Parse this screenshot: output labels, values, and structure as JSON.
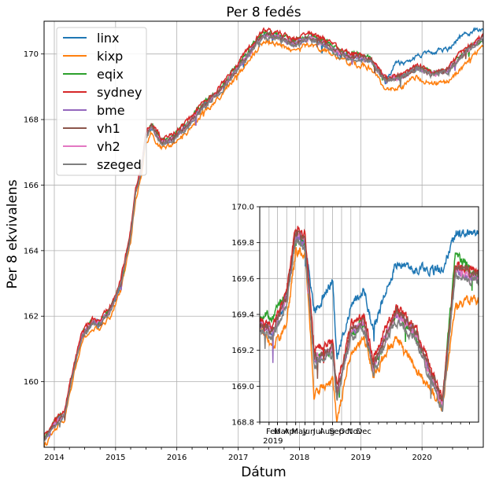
{
  "chart_data": [
    {
      "type": "line",
      "title": "Per 8 fedés",
      "xlabel": "Dátum",
      "ylabel": "Per 8 ekvivalens",
      "xlim": [
        "2013-11-01",
        "2020-12-31"
      ],
      "ylim": [
        158.0,
        171.0
      ],
      "grid": true,
      "legend_position": "top-left",
      "x_ticks": [
        "2014",
        "2015",
        "2016",
        "2017",
        "2018",
        "2019",
        "2020"
      ],
      "y_ticks": [
        160,
        162,
        164,
        166,
        168,
        170
      ],
      "colors": {
        "linx": "#1f77b4",
        "kixp": "#ff7f0e",
        "eqix": "#2ca02c",
        "sydney": "#d62728",
        "bme": "#9467bd",
        "vh1": "#8c564b",
        "vh2": "#e377c2",
        "szeged": "#7f7f7f"
      },
      "base": {
        "x": [
          "2013-11-01",
          "2014-01-01",
          "2014-03-01",
          "2014-05-01",
          "2014-06-15",
          "2014-08-15",
          "2014-10-01",
          "2014-12-01",
          "2015-02-01",
          "2015-04-01",
          "2015-05-01",
          "2015-06-01",
          "2015-07-01",
          "2015-08-01",
          "2015-10-01",
          "2015-12-01",
          "2016-03-01",
          "2016-06-01",
          "2016-09-01",
          "2016-12-01",
          "2017-03-01",
          "2017-06-01",
          "2017-09-01",
          "2017-12-01",
          "2018-03-01",
          "2018-06-01",
          "2018-09-01",
          "2018-12-01",
          "2019-03-01",
          "2019-06-01",
          "2019-09-01",
          "2019-12-01",
          "2020-03-01",
          "2020-06-01",
          "2020-09-01",
          "2020-12-31"
        ],
        "y": [
          158.2,
          158.7,
          159.0,
          160.5,
          161.4,
          161.8,
          161.8,
          162.2,
          163.0,
          164.5,
          165.8,
          166.4,
          167.5,
          167.8,
          167.3,
          167.4,
          167.8,
          168.4,
          168.8,
          169.4,
          170.0,
          170.6,
          170.5,
          170.3,
          170.5,
          170.3,
          170.0,
          169.9,
          169.8,
          169.2,
          169.3,
          169.6,
          169.4,
          169.5,
          170.0,
          170.5
        ]
      },
      "series": [
        {
          "name": "linx",
          "offset": [
            [
              "2013-11-01",
              0
            ],
            [
              "2019-06-01",
              0
            ],
            [
              "2019-08-01",
              0.5
            ],
            [
              "2019-11-01",
              0.3
            ],
            [
              "2020-04-01",
              0.7
            ],
            [
              "2020-09-01",
              0.6
            ],
            [
              "2020-12-31",
              0.3
            ]
          ]
        },
        {
          "name": "kixp",
          "offset": [
            [
              "2013-11-01",
              -0.2
            ],
            [
              "2019-01-01",
              -0.2
            ],
            [
              "2019-06-01",
              -0.3
            ],
            [
              "2020-01-01",
              -0.3
            ],
            [
              "2020-09-01",
              -0.4
            ],
            [
              "2020-12-31",
              -0.2
            ]
          ]
        },
        {
          "name": "eqix",
          "offset": [
            [
              "2013-11-01",
              0.05
            ],
            [
              "2019-01-01",
              0.1
            ],
            [
              "2019-06-01",
              0.0
            ],
            [
              "2020-12-31",
              0.0
            ]
          ]
        },
        {
          "name": "sydney",
          "offset": [
            [
              "2013-11-01",
              0.1
            ],
            [
              "2018-06-01",
              0.15
            ],
            [
              "2019-06-01",
              0.05
            ],
            [
              "2020-12-31",
              0.1
            ]
          ]
        },
        {
          "name": "bme",
          "offset": [
            [
              "2013-11-01",
              0.0
            ],
            [
              "2020-12-31",
              0.0
            ]
          ]
        },
        {
          "name": "vh1",
          "offset": [
            [
              "2013-11-01",
              0.0
            ],
            [
              "2020-12-31",
              0.0
            ]
          ]
        },
        {
          "name": "vh2",
          "offset": [
            [
              "2013-11-01",
              0.0
            ],
            [
              "2020-12-31",
              0.0
            ]
          ]
        },
        {
          "name": "szeged",
          "offset": [
            [
              "2013-11-01",
              -0.05
            ],
            [
              "2020-12-31",
              -0.05
            ]
          ]
        }
      ]
    },
    {
      "type": "line",
      "title": "",
      "xlim": [
        "2019-01-01",
        "2020-12-31"
      ],
      "ylim": [
        168.8,
        170.0
      ],
      "grid": true,
      "x_ticks": [
        "Feb",
        "Mar",
        "Apr",
        "May",
        "Jun",
        "Jul",
        "Aug",
        "Sep",
        "Oct",
        "Nov",
        "Dec"
      ],
      "x_year_label": "2019",
      "y_ticks": [
        "168.8",
        "169.0",
        "169.2",
        "169.4",
        "169.6",
        "169.8",
        "170.0"
      ],
      "base": {
        "x": [
          "2019-01-01",
          "2019-02-15",
          "2019-04-01",
          "2019-05-01",
          "2019-06-01",
          "2019-06-20",
          "2019-07-01",
          "2019-09-01",
          "2019-09-15",
          "2019-11-01",
          "2019-12-15",
          "2020-01-15",
          "2020-03-01",
          "2020-04-01",
          "2020-06-01",
          "2020-09-01",
          "2020-10-15",
          "2020-12-31"
        ],
        "y": [
          169.35,
          169.3,
          169.5,
          169.85,
          169.8,
          169.4,
          169.15,
          169.2,
          168.95,
          169.3,
          169.35,
          169.1,
          169.3,
          169.4,
          169.3,
          168.9,
          169.65,
          169.6
        ]
      },
      "series": [
        {
          "name": "linx",
          "offset": [
            [
              "2019-01-01",
              0.0
            ],
            [
              "2019-06-01",
              0.0
            ],
            [
              "2019-07-01",
              0.25
            ],
            [
              "2019-09-01",
              0.4
            ],
            [
              "2019-09-15",
              0.2
            ],
            [
              "2019-11-01",
              0.15
            ],
            [
              "2020-03-01",
              0.25
            ],
            [
              "2020-06-01",
              0.35
            ],
            [
              "2020-09-01",
              0.75
            ],
            [
              "2020-10-15",
              0.2
            ],
            [
              "2020-12-31",
              0.25
            ]
          ]
        },
        {
          "name": "kixp",
          "offset": [
            [
              "2019-01-01",
              -0.02
            ],
            [
              "2019-04-01",
              -0.15
            ],
            [
              "2019-06-01",
              -0.05
            ],
            [
              "2019-07-01",
              -0.2
            ],
            [
              "2019-09-15",
              -0.15
            ],
            [
              "2020-01-15",
              -0.05
            ],
            [
              "2020-06-01",
              -0.2
            ],
            [
              "2020-09-01",
              0.0
            ],
            [
              "2020-10-15",
              -0.2
            ],
            [
              "2020-12-31",
              -0.12
            ]
          ]
        },
        {
          "name": "eqix",
          "offset": [
            [
              "2019-01-01",
              0.05
            ],
            [
              "2019-03-01",
              0.1
            ],
            [
              "2019-04-01",
              0.0
            ],
            [
              "2020-09-01",
              0.0
            ],
            [
              "2020-10-15",
              0.1
            ],
            [
              "2020-12-31",
              0.0
            ]
          ]
        },
        {
          "name": "sydney",
          "offset": [
            [
              "2019-01-01",
              0.02
            ],
            [
              "2019-06-01",
              0.05
            ],
            [
              "2019-09-15",
              0.05
            ],
            [
              "2020-12-31",
              0.03
            ]
          ]
        },
        {
          "name": "bme",
          "offset": [
            [
              "2019-01-01",
              0.0
            ],
            [
              "2020-12-31",
              0.0
            ]
          ]
        },
        {
          "name": "vh1",
          "offset": [
            [
              "2019-01-01",
              0.0
            ],
            [
              "2020-12-31",
              0.02
            ]
          ]
        },
        {
          "name": "vh2",
          "offset": [
            [
              "2019-01-01",
              0.0
            ],
            [
              "2020-12-31",
              0.0
            ]
          ]
        },
        {
          "name": "szeged",
          "offset": [
            [
              "2019-01-01",
              -0.03
            ],
            [
              "2020-12-31",
              -0.03
            ]
          ]
        }
      ]
    }
  ]
}
